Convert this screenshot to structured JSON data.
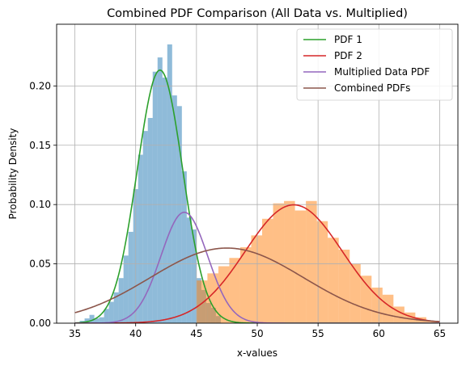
{
  "chart_data": {
    "type": "histogram+line",
    "title": "Combined PDF Comparison (All Data vs. Multiplied)",
    "xlabel": "x-values",
    "ylabel": "Probability Density",
    "xlim": [
      33.5,
      66.5
    ],
    "ylim": [
      0,
      0.252
    ],
    "xticks": [
      35,
      40,
      45,
      50,
      55,
      60,
      65
    ],
    "yticks": [
      0.0,
      0.05,
      0.1,
      0.15,
      0.2
    ],
    "ytick_labels": [
      "0.00",
      "0.05",
      "0.10",
      "0.15",
      "0.20"
    ],
    "grid": true,
    "legend_position": "upper-right",
    "histograms": [
      {
        "color": "#1f77b4",
        "alpha": 0.5,
        "bin_edges": [
          35.4,
          35.8,
          36.2,
          36.6,
          37.0,
          37.4,
          37.8,
          38.2,
          38.6,
          39.0,
          39.4,
          39.8,
          40.2,
          40.6,
          41.0,
          41.4,
          41.8,
          42.2,
          42.6,
          43.0,
          43.4,
          43.8,
          44.2,
          44.6,
          45.0,
          45.4,
          45.8,
          46.2,
          46.6,
          47.0
        ],
        "values": [
          0.002,
          0.004,
          0.007,
          0.004,
          0.005,
          0.012,
          0.018,
          0.026,
          0.038,
          0.057,
          0.077,
          0.113,
          0.142,
          0.162,
          0.173,
          0.212,
          0.224,
          0.207,
          0.235,
          0.192,
          0.183,
          0.128,
          0.089,
          0.079,
          0.038,
          0.028,
          0.017,
          0.013,
          0.006
        ]
      },
      {
        "color": "#ff7f0e",
        "alpha": 0.5,
        "bin_edges": [
          45.0,
          45.9,
          46.8,
          47.7,
          48.6,
          49.5,
          50.4,
          51.3,
          52.2,
          53.1,
          54.0,
          54.9,
          55.8,
          56.7,
          57.6,
          58.5,
          59.4,
          60.3,
          61.2,
          62.1,
          63.0,
          63.9,
          64.8
        ],
        "values": [
          0.036,
          0.042,
          0.048,
          0.055,
          0.064,
          0.074,
          0.088,
          0.101,
          0.103,
          0.095,
          0.103,
          0.086,
          0.072,
          0.062,
          0.05,
          0.04,
          0.03,
          0.024,
          0.014,
          0.009,
          0.005,
          0.002
        ]
      }
    ],
    "series": [
      {
        "name": "PDF 1",
        "color": "#2ca02c",
        "dist": {
          "mu": 42.0,
          "sigma": 1.87,
          "scale": 1.0
        }
      },
      {
        "name": "PDF 2",
        "color": "#d62728",
        "dist": {
          "mu": 53.0,
          "sigma": 4.0,
          "scale": 1.0
        }
      },
      {
        "name": "Multiplied Data PDF",
        "color": "#9467bd",
        "dist": {
          "mu": 44.0,
          "sigma": 1.92,
          "scale": 0.45
        }
      },
      {
        "name": "Combined PDFs",
        "color": "#8c564b",
        "dist": {
          "mu": 47.5,
          "sigma": 6.3,
          "scale": 1.0
        }
      }
    ],
    "x_range": [
      35,
      65
    ]
  }
}
